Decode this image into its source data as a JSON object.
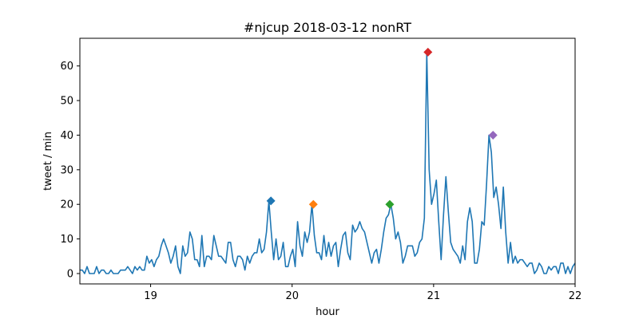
{
  "chart_data": {
    "type": "line",
    "title": "#njcup 2018-03-12 nonRT",
    "xlabel": "hour",
    "ylabel": "tweet / min",
    "xlim": [
      18.5,
      22.0
    ],
    "ylim": [
      -3,
      68
    ],
    "xticks": [
      19,
      20,
      21,
      22
    ],
    "yticks": [
      0,
      10,
      20,
      30,
      40,
      50,
      60
    ],
    "grid": false,
    "line_color": "#1f77b4",
    "series": [
      {
        "values": [
          1,
          1,
          0,
          2,
          0,
          0,
          0,
          2,
          0,
          1,
          1,
          0,
          0,
          1,
          0,
          0,
          0,
          1,
          1,
          1,
          2,
          1,
          0,
          2,
          1,
          2,
          1,
          1,
          5,
          3,
          4,
          2,
          4,
          5,
          8,
          10,
          8,
          6,
          3,
          5,
          8,
          2,
          0,
          8,
          5,
          6,
          12,
          10,
          4,
          4,
          2,
          11,
          2,
          5,
          5,
          4,
          11,
          8,
          5,
          5,
          4,
          3,
          9,
          9,
          4,
          2,
          5,
          5,
          4,
          1,
          5,
          3,
          5,
          6,
          6,
          10,
          6,
          7,
          12,
          21,
          12,
          4,
          10,
          4,
          5,
          9,
          2,
          2,
          5,
          7,
          2,
          15,
          8,
          5,
          12,
          9,
          12,
          20,
          11,
          6,
          6,
          4,
          11,
          5,
          9,
          5,
          8,
          9,
          2,
          7,
          11,
          12,
          6,
          4,
          14,
          12,
          13,
          15,
          13,
          12,
          9,
          6,
          3,
          6,
          7,
          3,
          7,
          12,
          16,
          17,
          20,
          16,
          10,
          12,
          9,
          3,
          5,
          8,
          8,
          8,
          5,
          6,
          9,
          10,
          16,
          64,
          30,
          20,
          23,
          27,
          15,
          4,
          17,
          28,
          18,
          9,
          7,
          6,
          5,
          3,
          8,
          4,
          15,
          19,
          15,
          3,
          3,
          7,
          15,
          14,
          26,
          40,
          35,
          22,
          25,
          20,
          13,
          25,
          12,
          3,
          9,
          3,
          5,
          3,
          4,
          4,
          3,
          2,
          3,
          3,
          0,
          1,
          3,
          2,
          0,
          0,
          2,
          1,
          2,
          2,
          0,
          3,
          3,
          0,
          2,
          0,
          2,
          3
        ]
      }
    ],
    "peaks": [
      {
        "x": 19.85,
        "y": 21,
        "color": "#1f77b4"
      },
      {
        "x": 20.15,
        "y": 20,
        "color": "#ff7f0e"
      },
      {
        "x": 20.69,
        "y": 20,
        "color": "#2ca02c"
      },
      {
        "x": 20.96,
        "y": 64,
        "color": "#d62728"
      },
      {
        "x": 21.42,
        "y": 40,
        "color": "#9467bd"
      }
    ]
  }
}
